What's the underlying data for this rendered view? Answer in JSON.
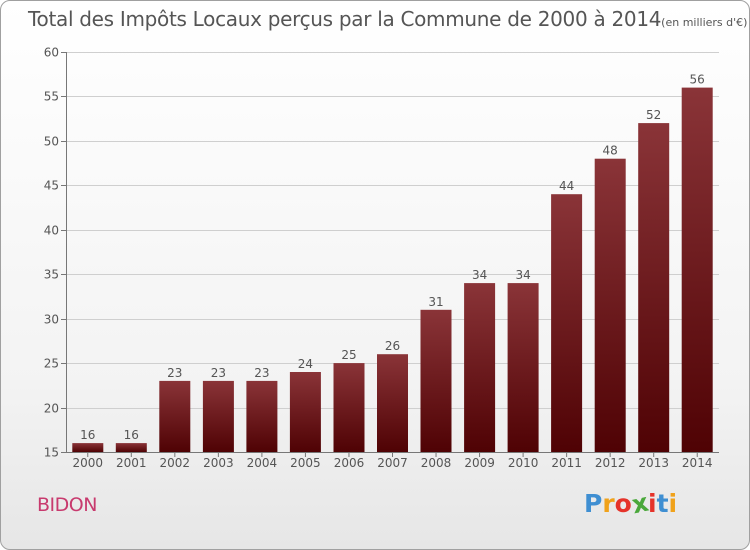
{
  "chart_data": {
    "type": "bar",
    "title": "Total des Impôts Locaux perçus par la Commune de 2000 à 2014",
    "unit_note": "(en milliers d'€)",
    "categories": [
      "2000",
      "2001",
      "2002",
      "2003",
      "2004",
      "2005",
      "2006",
      "2007",
      "2008",
      "2009",
      "2010",
      "2011",
      "2012",
      "2013",
      "2014"
    ],
    "values": [
      16,
      16,
      23,
      23,
      23,
      24,
      25,
      26,
      31,
      34,
      34,
      44,
      48,
      52,
      56
    ],
    "ylim": [
      15,
      60
    ],
    "yticks": [
      15,
      20,
      25,
      30,
      35,
      40,
      45,
      50,
      55,
      60
    ],
    "xlabel": "",
    "ylabel": "",
    "grid": true,
    "bar_color_light": "#8a3438",
    "bar_color_dark": "#4f0204"
  },
  "commune": "BIDON",
  "logo": {
    "letters": [
      "P",
      "r",
      "o",
      "x",
      "i",
      "t",
      "i"
    ],
    "colors": [
      "#3f8fd2",
      "#f0a21b",
      "#e5332a",
      "#4aa83b",
      "#e5332a",
      "#3f8fd2",
      "#f0a21b"
    ]
  }
}
